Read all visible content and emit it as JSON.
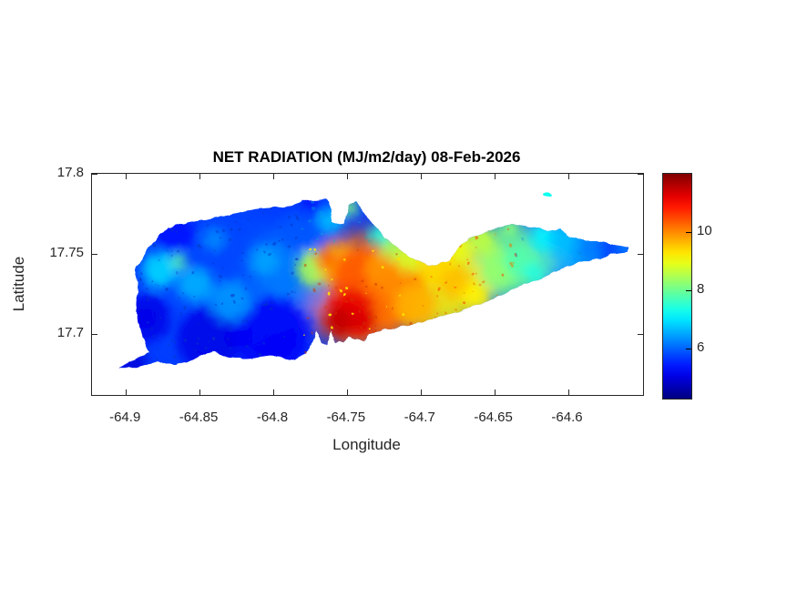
{
  "chart_data": {
    "type": "heatmap",
    "title": "NET RADIATION (MJ/m2/day) 08-Feb-2026",
    "date": "08-Feb-2026",
    "units": "MJ/m2/day",
    "xlabel": "Longitude",
    "ylabel": "Latitude",
    "xlim": [
      -64.923,
      -64.549
    ],
    "ylim": [
      17.662,
      17.8
    ],
    "xticks": [
      -64.9,
      -64.85,
      -64.8,
      -64.75,
      -64.7,
      -64.65,
      -64.6
    ],
    "xtick_labels": [
      "-64.9",
      "-64.85",
      "-64.8",
      "-64.75",
      "-64.7",
      "-64.65",
      "-64.6"
    ],
    "yticks": [
      17.8,
      17.75,
      17.7
    ],
    "ytick_labels": [
      "17.8",
      "17.75",
      "17.7"
    ],
    "grid": false,
    "legend": false,
    "colormap": "jet",
    "colorbar": {
      "position": "right",
      "range": [
        4.3,
        12.0
      ],
      "ticks": [
        10,
        8,
        6
      ],
      "tick_labels": [
        "10",
        "8",
        "6"
      ]
    },
    "sampled_values": {
      "note": "approximate net radiation values (MJ/m2/day) read from the map; null = ocean",
      "lon": [
        -64.9,
        -64.85,
        -64.8,
        -64.75,
        -64.7,
        -64.65,
        -64.6
      ],
      "lat": [
        17.75,
        17.72,
        17.7
      ],
      "grid": [
        [
          5.5,
          6.5,
          6.0,
          7.5,
          9.0,
          8.5,
          7.0
        ],
        [
          5.2,
          5.6,
          6.2,
          10.3,
          9.8,
          8.6,
          null
        ],
        [
          null,
          5.0,
          5.4,
          11.2,
          9.5,
          null,
          null
        ]
      ]
    },
    "base_value": 5.7,
    "islet": {
      "lon": -64.614,
      "lat": 17.787,
      "value": 7.3
    },
    "island_outline": [
      [
        -64.904,
        17.679
      ],
      [
        -64.898,
        17.683
      ],
      [
        -64.89,
        17.686
      ],
      [
        -64.884,
        17.688
      ],
      [
        -64.891,
        17.704
      ],
      [
        -64.893,
        17.718
      ],
      [
        -64.892,
        17.732
      ],
      [
        -64.894,
        17.74
      ],
      [
        -64.889,
        17.747
      ],
      [
        -64.884,
        17.754
      ],
      [
        -64.879,
        17.76
      ],
      [
        -64.872,
        17.766
      ],
      [
        -64.864,
        17.768
      ],
      [
        -64.854,
        17.77
      ],
      [
        -64.844,
        17.772
      ],
      [
        -64.832,
        17.774
      ],
      [
        -64.823,
        17.776
      ],
      [
        -64.812,
        17.778
      ],
      [
        -64.799,
        17.779
      ],
      [
        -64.788,
        17.78
      ],
      [
        -64.78,
        17.783
      ],
      [
        -64.771,
        17.783
      ],
      [
        -64.764,
        17.784
      ],
      [
        -64.761,
        17.777
      ],
      [
        -64.76,
        17.77
      ],
      [
        -64.756,
        17.768
      ],
      [
        -64.752,
        17.769
      ],
      [
        -64.75,
        17.775
      ],
      [
        -64.748,
        17.781
      ],
      [
        -64.744,
        17.783
      ],
      [
        -64.74,
        17.778
      ],
      [
        -64.736,
        17.772
      ],
      [
        -64.73,
        17.766
      ],
      [
        -64.724,
        17.76
      ],
      [
        -64.717,
        17.755
      ],
      [
        -64.71,
        17.75
      ],
      [
        -64.703,
        17.746
      ],
      [
        -64.695,
        17.743
      ],
      [
        -64.688,
        17.743
      ],
      [
        -64.681,
        17.746
      ],
      [
        -64.676,
        17.751
      ],
      [
        -64.672,
        17.756
      ],
      [
        -64.666,
        17.76
      ],
      [
        -64.66,
        17.762
      ],
      [
        -64.651,
        17.765
      ],
      [
        -64.644,
        17.768
      ],
      [
        -64.635,
        17.768
      ],
      [
        -64.627,
        17.767
      ],
      [
        -64.62,
        17.766
      ],
      [
        -64.614,
        17.764
      ],
      [
        -64.606,
        17.766
      ],
      [
        -64.598,
        17.76
      ],
      [
        -64.589,
        17.758
      ],
      [
        -64.58,
        17.758
      ],
      [
        -64.571,
        17.756
      ],
      [
        -64.564,
        17.755
      ],
      [
        -64.558,
        17.754
      ],
      [
        -64.56,
        17.751
      ],
      [
        -64.568,
        17.75
      ],
      [
        -64.577,
        17.748
      ],
      [
        -64.585,
        17.746
      ],
      [
        -64.595,
        17.744
      ],
      [
        -64.604,
        17.741
      ],
      [
        -64.613,
        17.737
      ],
      [
        -64.622,
        17.734
      ],
      [
        -64.632,
        17.73
      ],
      [
        -64.641,
        17.726
      ],
      [
        -64.65,
        17.722
      ],
      [
        -64.66,
        17.719
      ],
      [
        -64.669,
        17.716
      ],
      [
        -64.678,
        17.713
      ],
      [
        -64.687,
        17.711
      ],
      [
        -64.697,
        17.708
      ],
      [
        -64.706,
        17.706
      ],
      [
        -64.715,
        17.704
      ],
      [
        -64.725,
        17.703
      ],
      [
        -64.731,
        17.701
      ],
      [
        -64.735,
        17.699
      ],
      [
        -64.738,
        17.696
      ],
      [
        -64.741,
        17.697
      ],
      [
        -64.745,
        17.696
      ],
      [
        -64.749,
        17.698
      ],
      [
        -64.752,
        17.695
      ],
      [
        -64.755,
        17.696
      ],
      [
        -64.758,
        17.694
      ],
      [
        -64.761,
        17.702
      ],
      [
        -64.764,
        17.693
      ],
      [
        -64.767,
        17.695
      ],
      [
        -64.77,
        17.703
      ],
      [
        -64.772,
        17.697
      ],
      [
        -64.775,
        17.692
      ],
      [
        -64.778,
        17.688
      ],
      [
        -64.783,
        17.685
      ],
      [
        -64.788,
        17.684
      ],
      [
        -64.794,
        17.685
      ],
      [
        -64.802,
        17.687
      ],
      [
        -64.81,
        17.686
      ],
      [
        -64.818,
        17.685
      ],
      [
        -64.826,
        17.685
      ],
      [
        -64.833,
        17.686
      ],
      [
        -64.841,
        17.689
      ],
      [
        -64.849,
        17.687
      ],
      [
        -64.857,
        17.683
      ],
      [
        -64.866,
        17.681
      ],
      [
        -64.873,
        17.681
      ],
      [
        -64.878,
        17.683
      ],
      [
        -64.886,
        17.681
      ],
      [
        -64.894,
        17.679
      ]
    ],
    "field_blobs": [
      [
        -64.602,
        17.754,
        0.025,
        6.6
      ],
      [
        -64.639,
        17.744,
        0.028,
        8.0
      ],
      [
        -64.688,
        17.732,
        0.034,
        9.2
      ],
      [
        -64.738,
        17.727,
        0.04,
        10.2
      ],
      [
        -64.837,
        17.732,
        0.056,
        5.8
      ],
      [
        -64.787,
        17.738,
        0.028,
        6.2
      ],
      [
        -64.886,
        17.71,
        0.016,
        5.1
      ],
      [
        -64.895,
        17.682,
        0.009,
        5.0
      ],
      [
        -64.867,
        17.763,
        0.014,
        5.4
      ],
      [
        -64.843,
        17.697,
        0.022,
        5.1
      ],
      [
        -64.801,
        17.699,
        0.025,
        5.2
      ],
      [
        -64.773,
        17.777,
        0.009,
        5.3
      ],
      [
        -64.877,
        17.74,
        0.012,
        6.9
      ],
      [
        -64.853,
        17.731,
        0.012,
        6.6
      ],
      [
        -64.864,
        17.745,
        0.005,
        7.9
      ],
      [
        -64.829,
        17.721,
        0.014,
        6.4
      ],
      [
        -64.806,
        17.746,
        0.01,
        6.5
      ],
      [
        -64.84,
        17.759,
        0.008,
        6.3
      ],
      [
        -64.781,
        17.764,
        0.014,
        5.9
      ],
      [
        -64.761,
        17.771,
        0.009,
        6.7
      ],
      [
        -64.748,
        17.779,
        0.006,
        8.2
      ],
      [
        -64.772,
        17.741,
        0.012,
        8.5
      ],
      [
        -64.756,
        17.744,
        0.014,
        9.8
      ],
      [
        -64.765,
        17.747,
        0.006,
        10.4
      ],
      [
        -64.741,
        17.735,
        0.019,
        10.4
      ],
      [
        -64.725,
        17.721,
        0.017,
        10.2
      ],
      [
        -64.747,
        17.714,
        0.016,
        11.2
      ],
      [
        -64.755,
        17.708,
        0.01,
        11.5
      ],
      [
        -64.739,
        17.708,
        0.009,
        11.3
      ],
      [
        -64.726,
        17.741,
        0.012,
        9.9
      ],
      [
        -64.713,
        17.732,
        0.014,
        10.0
      ],
      [
        -64.704,
        17.718,
        0.014,
        9.7
      ],
      [
        -64.719,
        17.755,
        0.009,
        8.4
      ],
      [
        -64.728,
        17.762,
        0.007,
        7.4
      ],
      [
        -64.708,
        17.747,
        0.009,
        8.8
      ],
      [
        -64.689,
        17.741,
        0.012,
        9.4
      ],
      [
        -64.676,
        17.732,
        0.011,
        9.6
      ],
      [
        -64.663,
        17.724,
        0.009,
        9.2
      ],
      [
        -64.673,
        17.754,
        0.009,
        9.0
      ],
      [
        -64.657,
        17.757,
        0.009,
        8.6
      ],
      [
        -64.646,
        17.741,
        0.012,
        8.3
      ],
      [
        -64.634,
        17.745,
        0.01,
        7.8
      ],
      [
        -64.623,
        17.738,
        0.007,
        7.4
      ],
      [
        -64.616,
        17.76,
        0.009,
        7.1
      ],
      [
        -64.602,
        17.758,
        0.01,
        6.7
      ],
      [
        -64.586,
        17.754,
        0.009,
        6.2
      ],
      [
        -64.572,
        17.755,
        0.007,
        5.8
      ],
      [
        -64.561,
        17.754,
        0.005,
        6.4
      ],
      [
        -64.64,
        17.766,
        0.007,
        8.2
      ],
      [
        -64.66,
        17.764,
        0.007,
        8.6
      ]
    ]
  }
}
